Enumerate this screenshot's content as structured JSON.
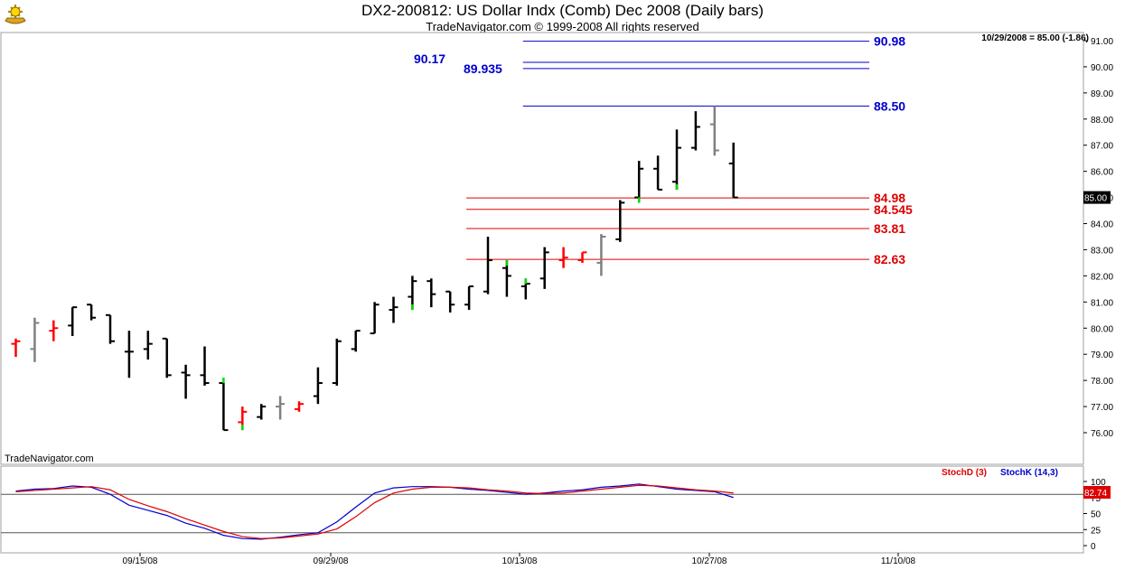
{
  "header": {
    "title": "DX2-200812:  US Dollar Indx (Comb) Dec 2008  (Daily bars)",
    "subtitle": "TradeNavigator.com © 1999-2008 All rights reserved",
    "last_value": "10/29/2008 = 85.00 (-1.86)",
    "watermark": "TradeNavigator.com",
    "logo_icon": "ship-wheel-logo"
  },
  "chart_data": [
    {
      "type": "ohlc",
      "title": "DX2-200812:  US Dollar Indx (Comb) Dec 2008  (Daily bars)",
      "ylim": [
        75.7,
        91.3
      ],
      "y_ticks": [
        "91.00",
        "90.00",
        "89.00",
        "88.00",
        "87.00",
        "86.00",
        "85.00",
        "84.00",
        "83.00",
        "82.00",
        "81.00",
        "80.00",
        "79.00",
        "78.00",
        "77.00",
        "76.00"
      ],
      "x_ticks": [
        "09/15/08",
        "09/29/08",
        "10/13/08",
        "10/27/08",
        "11/10/08"
      ],
      "last_price_label": "85.00",
      "colors": {
        "normal": "#000000",
        "gray": "#808080",
        "red": "#ff0000",
        "green": "#00dd00"
      },
      "bars": [
        {
          "o": 79.4,
          "h": 79.6,
          "l": 78.9,
          "c": 79.5,
          "color": "red"
        },
        {
          "o": 79.2,
          "h": 80.4,
          "l": 78.7,
          "c": 80.2,
          "color": "gray"
        },
        {
          "o": 79.9,
          "h": 80.3,
          "l": 79.5,
          "c": 80.0,
          "color": "red"
        },
        {
          "o": 80.1,
          "h": 80.8,
          "l": 79.7,
          "c": 80.8,
          "color": "normal"
        },
        {
          "o": 80.9,
          "h": 80.9,
          "l": 80.3,
          "c": 80.4,
          "color": "normal"
        },
        {
          "o": 80.5,
          "h": 80.5,
          "l": 79.4,
          "c": 79.5,
          "color": "normal"
        },
        {
          "o": 79.1,
          "h": 79.9,
          "l": 78.1,
          "c": 79.1,
          "color": "normal"
        },
        {
          "o": 79.2,
          "h": 79.9,
          "l": 78.8,
          "c": 79.4,
          "color": "normal"
        },
        {
          "o": 79.6,
          "h": 79.6,
          "l": 78.1,
          "c": 78.2,
          "color": "normal"
        },
        {
          "o": 78.3,
          "h": 78.6,
          "l": 77.3,
          "c": 78.2,
          "color": "normal"
        },
        {
          "o": 78.2,
          "h": 79.3,
          "l": 77.8,
          "c": 77.9,
          "color": "normal"
        },
        {
          "o": 77.9,
          "h": 77.9,
          "l": 76.1,
          "c": 76.1,
          "color": "normal",
          "green_tick": "o"
        },
        {
          "o": 76.4,
          "h": 77.0,
          "l": 76.1,
          "c": 76.8,
          "color": "red",
          "green_tick": "l"
        },
        {
          "o": 76.6,
          "h": 77.1,
          "l": 76.5,
          "c": 77.0,
          "color": "normal"
        },
        {
          "o": 77.0,
          "h": 77.4,
          "l": 76.5,
          "c": 77.1,
          "color": "gray"
        },
        {
          "o": 76.9,
          "h": 77.2,
          "l": 76.8,
          "c": 77.1,
          "color": "red"
        },
        {
          "o": 77.4,
          "h": 78.5,
          "l": 77.1,
          "c": 77.9,
          "color": "normal"
        },
        {
          "o": 77.9,
          "h": 79.6,
          "l": 77.8,
          "c": 79.5,
          "color": "normal"
        },
        {
          "o": 79.2,
          "h": 79.9,
          "l": 79.1,
          "c": 79.9,
          "color": "normal"
        },
        {
          "o": 79.8,
          "h": 81.0,
          "l": 79.8,
          "c": 80.9,
          "color": "normal"
        },
        {
          "o": 80.7,
          "h": 81.2,
          "l": 80.2,
          "c": 80.8,
          "color": "normal"
        },
        {
          "o": 81.2,
          "h": 82.0,
          "l": 80.7,
          "c": 81.8,
          "color": "normal",
          "green_tick": "l"
        },
        {
          "o": 81.8,
          "h": 81.9,
          "l": 80.8,
          "c": 81.3,
          "color": "normal"
        },
        {
          "o": 81.4,
          "h": 81.4,
          "l": 80.6,
          "c": 80.9,
          "color": "normal"
        },
        {
          "o": 80.9,
          "h": 81.6,
          "l": 80.7,
          "c": 81.6,
          "color": "normal"
        },
        {
          "o": 81.4,
          "h": 83.5,
          "l": 81.3,
          "c": 82.6,
          "color": "normal"
        },
        {
          "o": 82.3,
          "h": 82.6,
          "l": 81.2,
          "c": 82.0,
          "color": "normal",
          "green_tick": "h"
        },
        {
          "o": 81.6,
          "h": 81.9,
          "l": 81.1,
          "c": 81.7,
          "color": "normal",
          "green_tick": "h"
        },
        {
          "o": 81.9,
          "h": 83.1,
          "l": 81.5,
          "c": 82.9,
          "color": "normal"
        },
        {
          "o": 82.6,
          "h": 83.1,
          "l": 82.3,
          "c": 82.7,
          "color": "red"
        },
        {
          "o": 82.6,
          "h": 82.9,
          "l": 82.5,
          "c": 82.9,
          "color": "red"
        },
        {
          "o": 82.5,
          "h": 83.6,
          "l": 82.0,
          "c": 83.5,
          "color": "gray"
        },
        {
          "o": 83.4,
          "h": 84.9,
          "l": 83.3,
          "c": 84.8,
          "color": "normal"
        },
        {
          "o": 85.0,
          "h": 86.4,
          "l": 84.8,
          "c": 86.1,
          "color": "normal",
          "green_tick": "l"
        },
        {
          "o": 86.1,
          "h": 86.6,
          "l": 85.3,
          "c": 85.3,
          "color": "normal"
        },
        {
          "o": 85.6,
          "h": 87.6,
          "l": 85.3,
          "c": 86.9,
          "color": "normal",
          "green_tick": "l"
        },
        {
          "o": 86.9,
          "h": 88.3,
          "l": 86.8,
          "c": 87.7,
          "color": "normal"
        },
        {
          "o": 87.8,
          "h": 88.5,
          "l": 86.6,
          "c": 86.8,
          "color": "gray"
        },
        {
          "o": 86.3,
          "h": 87.1,
          "l": 85.0,
          "c": 85.0,
          "color": "normal"
        }
      ],
      "levels": [
        {
          "label": "90.98",
          "value": 90.98,
          "color": "#0000cc",
          "side": "right",
          "start_bar": 27
        },
        {
          "label": "90.17",
          "value": 90.17,
          "color": "#0000cc",
          "side": "left",
          "start_bar": 27
        },
        {
          "label": "89.935",
          "value": 89.935,
          "color": "#0000cc",
          "side": "left",
          "start_bar": 27
        },
        {
          "label": "88.50",
          "value": 88.5,
          "color": "#0000cc",
          "side": "right",
          "start_bar": 27
        },
        {
          "label": "84.98",
          "value": 84.98,
          "color": "#dd0000",
          "side": "right",
          "start_bar": 24
        },
        {
          "label": "84.545",
          "value": 84.545,
          "color": "#dd0000",
          "side": "right",
          "start_bar": 24
        },
        {
          "label": "83.81",
          "value": 83.81,
          "color": "#dd0000",
          "side": "right",
          "start_bar": 24
        },
        {
          "label": "82.63",
          "value": 82.63,
          "color": "#dd0000",
          "side": "right",
          "start_bar": 24
        }
      ]
    },
    {
      "type": "line",
      "legend": [
        {
          "name": "StochD (3)",
          "color": "#dd0000"
        },
        {
          "name": "StochK (14,3)",
          "color": "#0000cc"
        }
      ],
      "ylim": [
        -10,
        115
      ],
      "y_ticks": [
        "100",
        "75",
        "50",
        "25",
        "0"
      ],
      "ref_lines": [
        80,
        20
      ],
      "last_value_label": "82.74",
      "series": [
        {
          "name": "StochK (14,3)",
          "color": "#0000cc",
          "values": [
            85,
            88,
            89,
            93,
            91,
            80,
            63,
            55,
            47,
            35,
            27,
            16,
            11,
            10,
            13,
            17,
            20,
            37,
            60,
            82,
            90,
            92,
            92,
            91,
            88,
            86,
            83,
            80,
            82,
            85,
            87,
            91,
            93,
            96,
            92,
            88,
            86,
            84,
            75
          ]
        },
        {
          "name": "StochD (3)",
          "color": "#dd0000",
          "values": [
            84,
            86,
            88,
            90,
            92,
            87,
            72,
            62,
            53,
            42,
            32,
            22,
            14,
            11,
            12,
            15,
            18,
            26,
            45,
            67,
            82,
            88,
            91,
            91,
            90,
            87,
            85,
            82,
            81,
            82,
            85,
            88,
            91,
            94,
            93,
            90,
            87,
            85,
            82
          ]
        }
      ]
    }
  ]
}
